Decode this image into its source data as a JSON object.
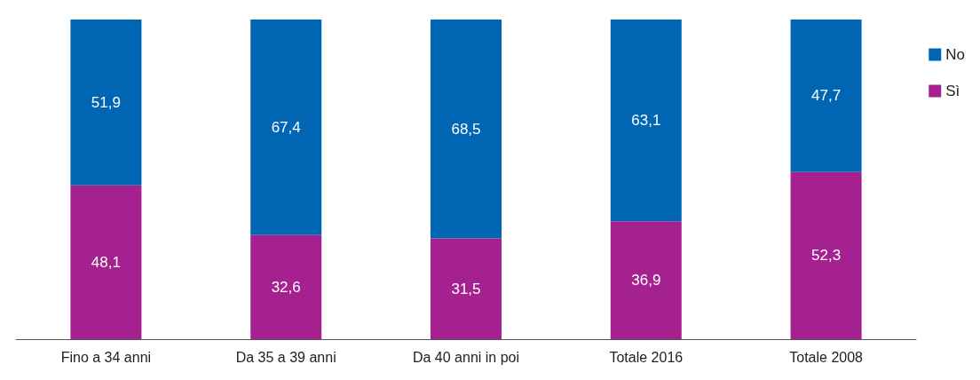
{
  "chart_data": {
    "type": "bar",
    "stacked": true,
    "legend": "right",
    "categories": [
      "Fino a 34 anni",
      "Da 35 a 39 anni",
      "Da 40 anni in poi",
      "Totale 2016",
      "Totale 2008"
    ],
    "series": [
      {
        "name": "Sì",
        "color": "#a5218f",
        "values": [
          48.1,
          32.6,
          31.5,
          36.9,
          52.3
        ],
        "value_labels": [
          "48,1",
          "32,6",
          "31,5",
          "36,9",
          "52,3"
        ]
      },
      {
        "name": "No",
        "color": "#0066b3",
        "values": [
          51.9,
          67.4,
          68.5,
          63.1,
          47.7
        ],
        "value_labels": [
          "51,9",
          "67,4",
          "68,5",
          "63,1",
          "47,7"
        ]
      }
    ]
  }
}
